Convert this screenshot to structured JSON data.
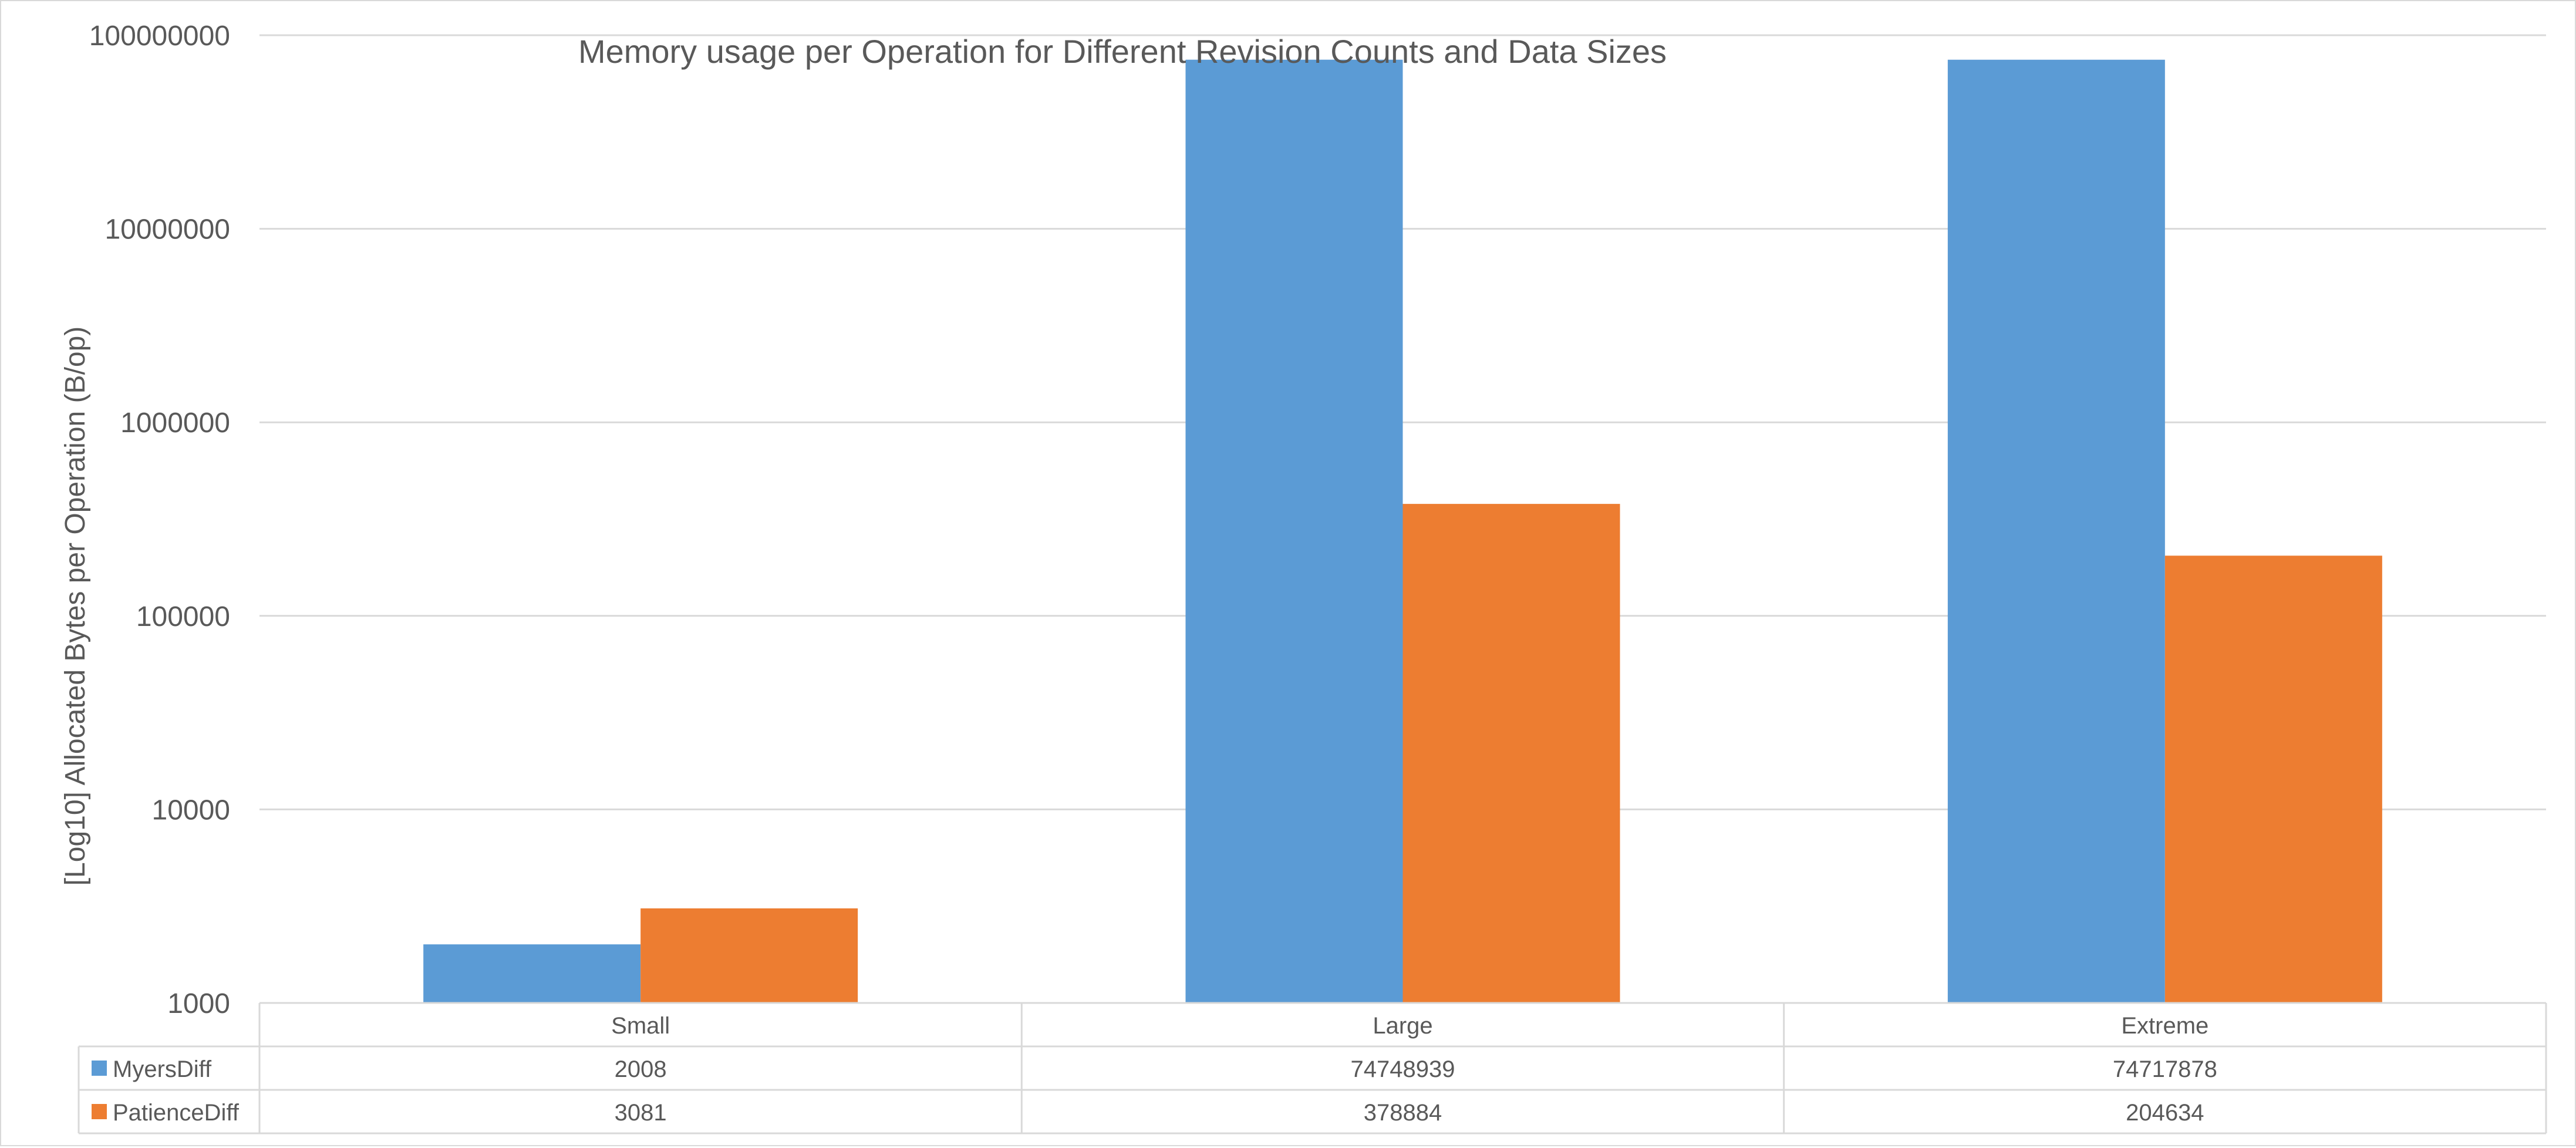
{
  "chart_data": {
    "type": "bar",
    "title": "Memory usage per Operation for Different Revision Counts and Data Sizes",
    "ylabel": "[Log10] Allocated Bytes per Operation (B/op)",
    "xlabel": "",
    "yscale": "log10",
    "ylim": [
      1000,
      100000000
    ],
    "yticks": [
      "1000",
      "10000",
      "100000",
      "1000000",
      "10000000",
      "100000000"
    ],
    "grid": true,
    "legend": "data-table-left",
    "categories": [
      "Small",
      "Large",
      "Extreme"
    ],
    "series": [
      {
        "name": "MyersDiff",
        "color": "#5b9bd5",
        "values": [
          2008,
          74748939,
          74717878
        ]
      },
      {
        "name": "PatienceDiff",
        "color": "#ed7d31",
        "values": [
          3081,
          378884,
          204634
        ]
      }
    ]
  }
}
